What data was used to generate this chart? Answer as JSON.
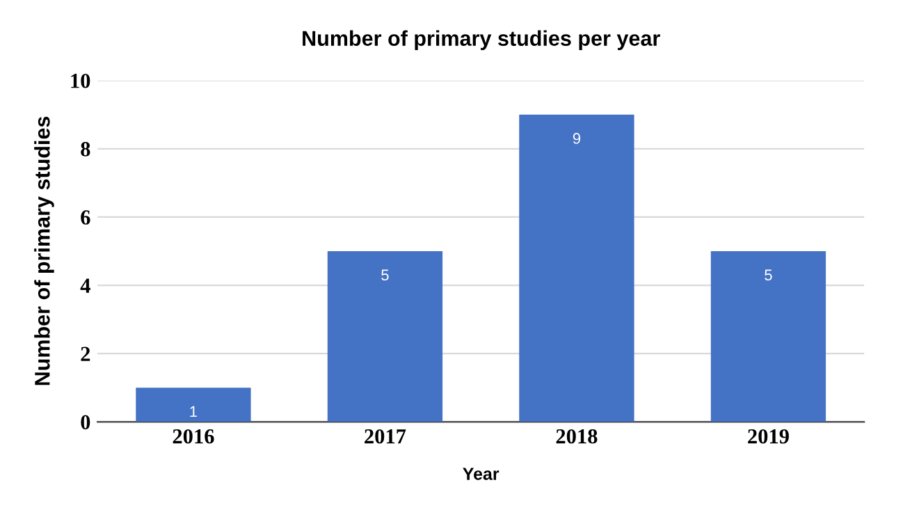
{
  "chart_data": {
    "type": "bar",
    "title": "Number of primary studies per year",
    "xlabel": "Year",
    "ylabel": "Number of primary studies",
    "categories": [
      "2016",
      "2017",
      "2018",
      "2019"
    ],
    "values": [
      1,
      5,
      9,
      5
    ],
    "color": "#4472c4",
    "ylim": [
      0,
      10
    ],
    "yticks": [
      0,
      2,
      4,
      6,
      8,
      10
    ],
    "grid": "y",
    "data_labels": true
  }
}
